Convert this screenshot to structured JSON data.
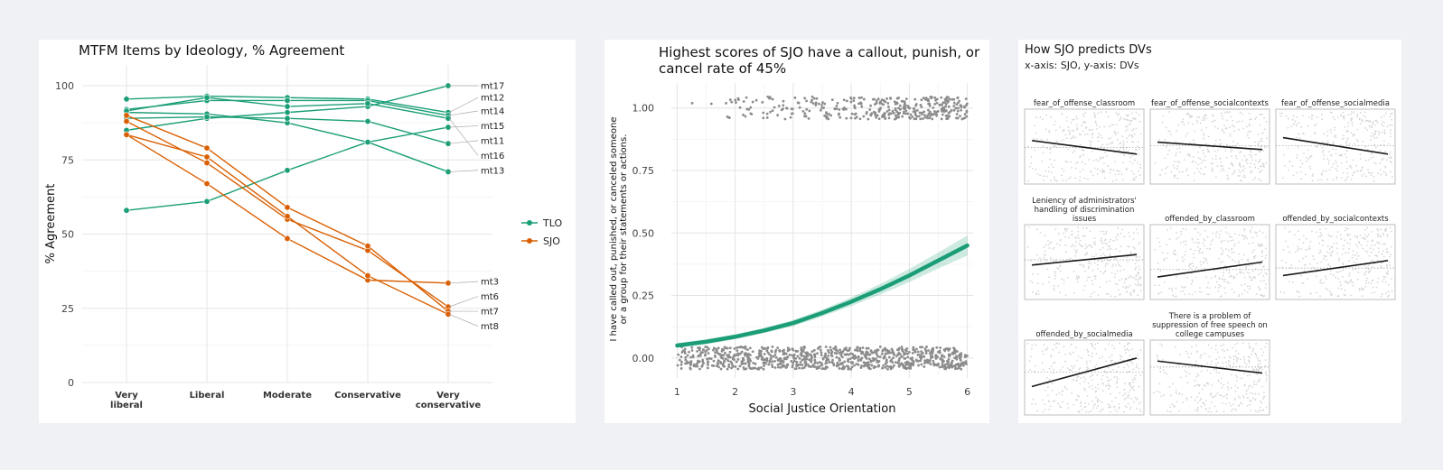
{
  "chart_data": [
    {
      "type": "line",
      "title": "MTFM Items by Ideology, % Agreement",
      "ylabel": "% Agreement",
      "xlabel": "",
      "categories": [
        "Very liberal",
        "Liberal",
        "Moderate",
        "Conservative",
        "Very conservative"
      ],
      "yticks": [
        0,
        25,
        50,
        75,
        100
      ],
      "ylim": [
        0,
        107
      ],
      "legend": {
        "position": "right",
        "entries": [
          {
            "name": "TLO",
            "color": "#1b9e77"
          },
          {
            "name": "SJO",
            "color": "#d95f02"
          }
        ]
      },
      "series": [
        {
          "name": "mt17",
          "group": "TLO",
          "values": [
            85,
            89,
            91,
            93,
            100
          ]
        },
        {
          "name": "mt12",
          "group": "TLO",
          "values": [
            95.5,
            96.5,
            96,
            95.5,
            91
          ]
        },
        {
          "name": "mt14",
          "group": "TLO",
          "values": [
            92,
            95,
            95,
            95,
            90
          ]
        },
        {
          "name": "mt15",
          "group": "TLO",
          "values": [
            91,
            90.5,
            87.5,
            81,
            86
          ]
        },
        {
          "name": "mt11",
          "group": "TLO",
          "values": [
            89,
            89.5,
            89,
            88,
            80.5
          ]
        },
        {
          "name": "mt16",
          "group": "TLO",
          "values": [
            91.5,
            96,
            93,
            94,
            89
          ]
        },
        {
          "name": "mt13",
          "group": "TLO",
          "values": [
            58,
            61,
            71.5,
            81,
            71
          ]
        },
        {
          "name": "mt3",
          "group": "SJO",
          "values": [
            83.5,
            67,
            48.5,
            34.5,
            33.5
          ]
        },
        {
          "name": "mt6",
          "group": "SJO",
          "values": [
            88,
            74,
            55,
            44.5,
            25.5
          ]
        },
        {
          "name": "mt7",
          "group": "SJO",
          "values": [
            90,
            79,
            59,
            46,
            24
          ]
        },
        {
          "name": "mt8",
          "group": "SJO",
          "values": [
            83.5,
            76,
            56,
            36,
            23
          ]
        }
      ],
      "line_labels": [
        {
          "name": "mt17",
          "value": 100
        },
        {
          "name": "mt12",
          "value": 96
        },
        {
          "name": "mt14",
          "value": 91.5
        },
        {
          "name": "mt15",
          "value": 86.5
        },
        {
          "name": "mt11",
          "value": 81.5
        },
        {
          "name": "mt16",
          "value": 76.5
        },
        {
          "name": "mt13",
          "value": 71.5
        },
        {
          "name": "mt3",
          "value": 34
        },
        {
          "name": "mt6",
          "value": 29
        },
        {
          "name": "mt7",
          "value": 24
        },
        {
          "name": "mt8",
          "value": 19
        }
      ],
      "grid": true
    },
    {
      "type": "scatter",
      "title_lines": [
        "Highest scores of SJO have a callout, punish, or",
        "cancel rate of 45%"
      ],
      "xlabel": "Social Justice Orientation",
      "ylabel_lines": [
        "I have called out, punished, or canceled someone",
        "or a group for their statements or actions."
      ],
      "xlim": [
        0.9,
        6.1
      ],
      "ylim": [
        -0.08,
        1.1
      ],
      "xticks": [
        1,
        2,
        3,
        4,
        5,
        6
      ],
      "yticks": [
        0.0,
        0.25,
        0.5,
        0.75,
        1.0
      ],
      "ytick_labels": [
        "0.00",
        "0.25",
        "0.50",
        "0.75",
        "1.00"
      ],
      "fit": {
        "type": "logistic",
        "x": [
          1,
          1.5,
          2,
          2.5,
          3,
          3.5,
          4,
          4.5,
          5,
          5.5,
          6
        ],
        "y": [
          0.05,
          0.065,
          0.085,
          0.11,
          0.14,
          0.18,
          0.225,
          0.275,
          0.33,
          0.39,
          0.45
        ],
        "se": [
          0.01,
          0.01,
          0.01,
          0.01,
          0.012,
          0.014,
          0.017,
          0.021,
          0.026,
          0.032,
          0.04
        ],
        "color": "#1b9e77"
      },
      "grid": true
    },
    {
      "type": "scatter",
      "title": "How SJO predicts DVs",
      "subtitle": "x-axis: SJO, y-axis: DVs",
      "facets": [
        {
          "name": "fear_of_offense_classroom",
          "title_lines": [
            "fear_of_offense_classroom"
          ],
          "fit_y": [
            0.58,
            0.4
          ]
        },
        {
          "name": "fear_of_offense_socialcontexts",
          "title_lines": [
            "fear_of_offense_socialcontexts"
          ],
          "fit_y": [
            0.56,
            0.46
          ]
        },
        {
          "name": "fear_of_offense_socialmedia",
          "title_lines": [
            "fear_of_offense_socialmedia"
          ],
          "fit_y": [
            0.62,
            0.4
          ]
        },
        {
          "name": "leniency",
          "title_lines": [
            "Leniency of administrators'",
            "handling of discrimination",
            "issues"
          ],
          "fit_y": [
            0.46,
            0.6
          ]
        },
        {
          "name": "offended_by_classroom",
          "title_lines": [
            "offended_by_classroom"
          ],
          "fit_y": [
            0.3,
            0.5
          ]
        },
        {
          "name": "offended_by_socialcontexts",
          "title_lines": [
            "offended_by_socialcontexts"
          ],
          "fit_y": [
            0.32,
            0.52
          ]
        },
        {
          "name": "offended_by_socialmedia",
          "title_lines": [
            "offended_by_socialmedia"
          ],
          "fit_y": [
            0.38,
            0.76
          ]
        },
        {
          "name": "free_speech",
          "title_lines": [
            "There is a problem of",
            "suppression of free speech on",
            "college campuses"
          ],
          "fit_y": [
            0.72,
            0.56
          ]
        }
      ]
    }
  ]
}
